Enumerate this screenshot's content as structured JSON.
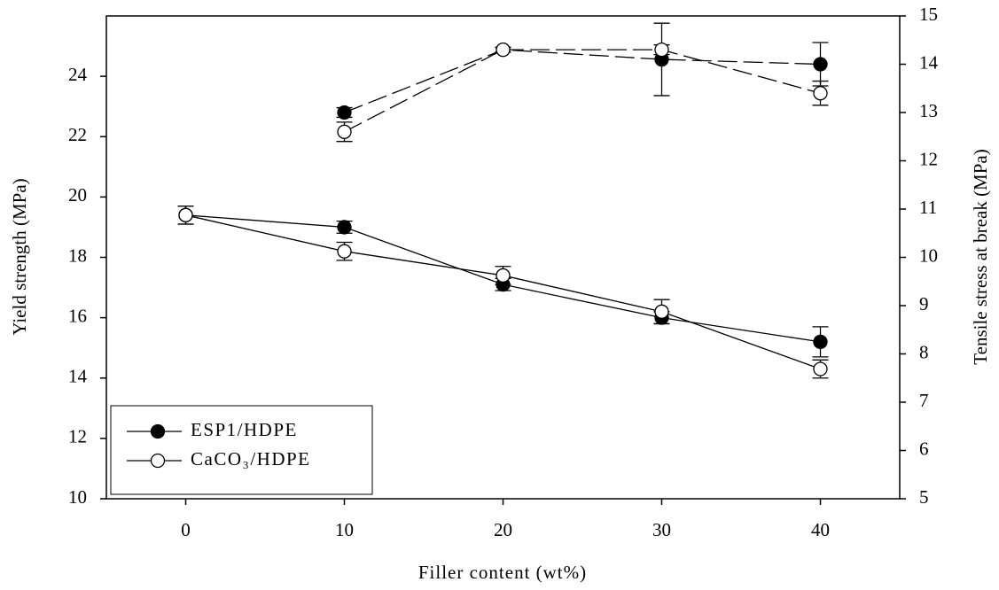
{
  "chart_data": {
    "type": "line",
    "xlabel": "Filler content (wt%)",
    "ylabel": "Yield strength (MPa)",
    "y2label": "Tensile stress at break (MPa)",
    "x": [
      0,
      10,
      20,
      30,
      40
    ],
    "xlim": [
      -5,
      45
    ],
    "xticks": [
      0,
      10,
      20,
      30,
      40
    ],
    "ylim": [
      10,
      26
    ],
    "yticks": [
      10,
      12,
      14,
      16,
      18,
      20,
      22,
      24
    ],
    "y2lim": [
      5,
      15
    ],
    "y2ticks": [
      5,
      6,
      7,
      8,
      9,
      10,
      11,
      12,
      13,
      14,
      15
    ],
    "legend": "lower left",
    "series": [
      {
        "name": "ESP1/HDPE",
        "color": "#000000",
        "marker_fill": "#000000",
        "values": [
          19.4,
          19.0,
          17.1,
          16.0,
          15.2
        ],
        "errors": [
          0.3,
          0.2,
          0.2,
          0.2,
          0.5
        ],
        "y2_values": [
          null,
          13.0,
          14.3,
          14.1,
          14.0
        ],
        "y2_errors": [
          null,
          0.1,
          0.05,
          0.75,
          0.45
        ]
      },
      {
        "name": "CaCO₃/HDPE",
        "color": "#000000",
        "marker_fill": "#ffffff",
        "values": [
          19.4,
          18.2,
          17.4,
          16.2,
          14.3
        ],
        "errors": [
          0.3,
          0.3,
          0.3,
          0.4,
          0.3
        ],
        "y2_values": [
          null,
          12.6,
          14.3,
          14.3,
          13.4
        ],
        "y2_errors": [
          null,
          0.2,
          0.05,
          0.1,
          0.25
        ]
      }
    ]
  }
}
